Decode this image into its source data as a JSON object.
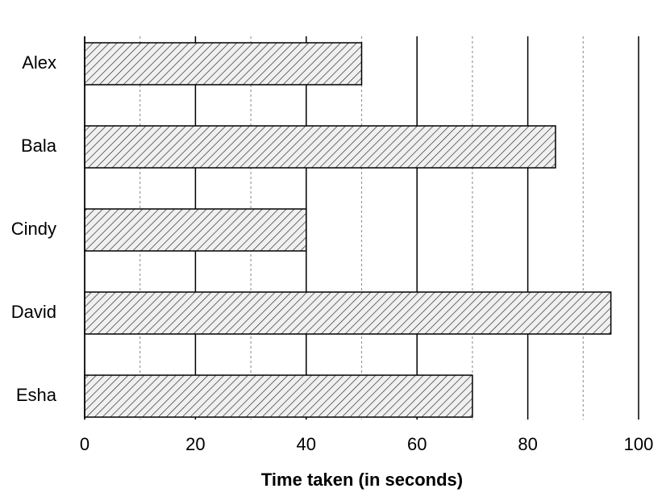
{
  "chart_data": {
    "type": "bar",
    "orientation": "horizontal",
    "categories": [
      "Alex",
      "Bala",
      "Cindy",
      "David",
      "Esha"
    ],
    "values": [
      50,
      85,
      40,
      95,
      70
    ],
    "color": "#ffffff",
    "hatch": "diagonal",
    "x_label": "Time taken (in seconds)",
    "xlim": [
      0,
      100
    ],
    "xticks": [
      0,
      20,
      40,
      60,
      80,
      100
    ],
    "minor_xticks": [
      10,
      30,
      50,
      70,
      90
    ],
    "grid": true
  }
}
